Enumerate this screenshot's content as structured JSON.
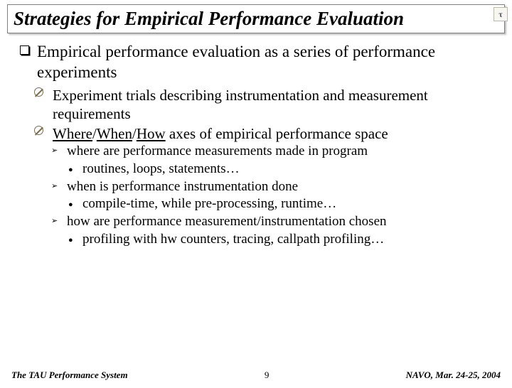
{
  "title": "Strategies for Empirical Performance Evaluation",
  "logo": "τ",
  "l1": "Empirical performance evaluation as a series of performance experiments",
  "l2a": "Experiment trials describing instrumentation and measurement requirements",
  "l2b_pre": "",
  "l2b_u1": "Where",
  "l2b_s1": "/",
  "l2b_u2": "When",
  "l2b_s2": "/",
  "l2b_u3": "How",
  "l2b_post": " axes of empirical performance space",
  "l3a": "where are performance measurements made in program",
  "l4a": "routines, loops, statements…",
  "l3b": "when is performance instrumentation done",
  "l4b": "compile-time, while pre-processing, runtime…",
  "l3c": "how are performance measurement/instrumentation chosen",
  "l4c": "profiling with hw counters, tracing, callpath profiling…",
  "footer_left": "The TAU Performance System",
  "footer_center": "9",
  "footer_right": "NAVO, Mar. 24-25, 2004"
}
